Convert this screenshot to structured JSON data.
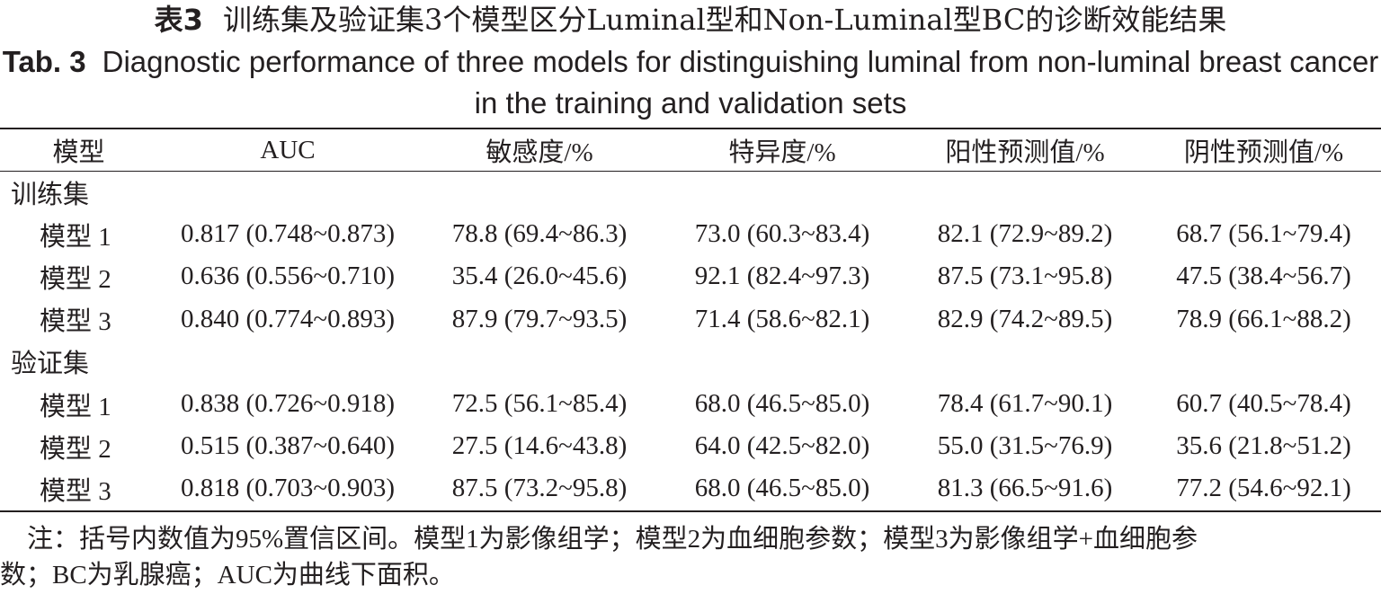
{
  "title_cn": {
    "label": "表3",
    "text": "训练集及验证集3个模型区分Luminal型和Non-Luminal型BC的诊断效能结果"
  },
  "title_en": {
    "label": "Tab. 3",
    "text": "Diagnostic performance of three models for distinguishing luminal from non-luminal breast cancer in the training and validation sets"
  },
  "table": {
    "headers": [
      "模型",
      "AUC",
      "敏感度/%",
      "特异度/%",
      "阳性预测值/%",
      "阴性预测值/%"
    ],
    "groups": [
      {
        "name": "训练集",
        "rows": [
          [
            "模型 1",
            "0.817 (0.748~0.873)",
            "78.8 (69.4~86.3)",
            "73.0 (60.3~83.4)",
            "82.1 (72.9~89.2)",
            "68.7 (56.1~79.4)"
          ],
          [
            "模型 2",
            "0.636 (0.556~0.710)",
            "35.4 (26.0~45.6)",
            "92.1 (82.4~97.3)",
            "87.5 (73.1~95.8)",
            "47.5 (38.4~56.7)"
          ],
          [
            "模型 3",
            "0.840 (0.774~0.893)",
            "87.9 (79.7~93.5)",
            "71.4 (58.6~82.1)",
            "82.9 (74.2~89.5)",
            "78.9 (66.1~88.2)"
          ]
        ]
      },
      {
        "name": "验证集",
        "rows": [
          [
            "模型 1",
            "0.838 (0.726~0.918)",
            "72.5 (56.1~85.4)",
            "68.0 (46.5~85.0)",
            "78.4 (61.7~90.1)",
            "60.7 (40.5~78.4)"
          ],
          [
            "模型 2",
            "0.515 (0.387~0.640)",
            "27.5 (14.6~43.8)",
            "64.0 (42.5~82.0)",
            "55.0 (31.5~76.9)",
            "35.6 (21.8~51.2)"
          ],
          [
            "模型 3",
            "0.818 (0.703~0.903)",
            "87.5 (73.2~95.8)",
            "68.0 (46.5~85.0)",
            "81.3 (66.5~91.6)",
            "77.2 (54.6~92.1)"
          ]
        ]
      }
    ]
  },
  "note": {
    "line1": "注：括号内数值为95%置信区间。模型1为影像组学；模型2为血细胞参数；模型3为影像组学+血细胞参",
    "line2": "数；BC为乳腺癌；AUC为曲线下面积。"
  },
  "colors": {
    "text": "#231f20",
    "background": "#ffffff"
  }
}
